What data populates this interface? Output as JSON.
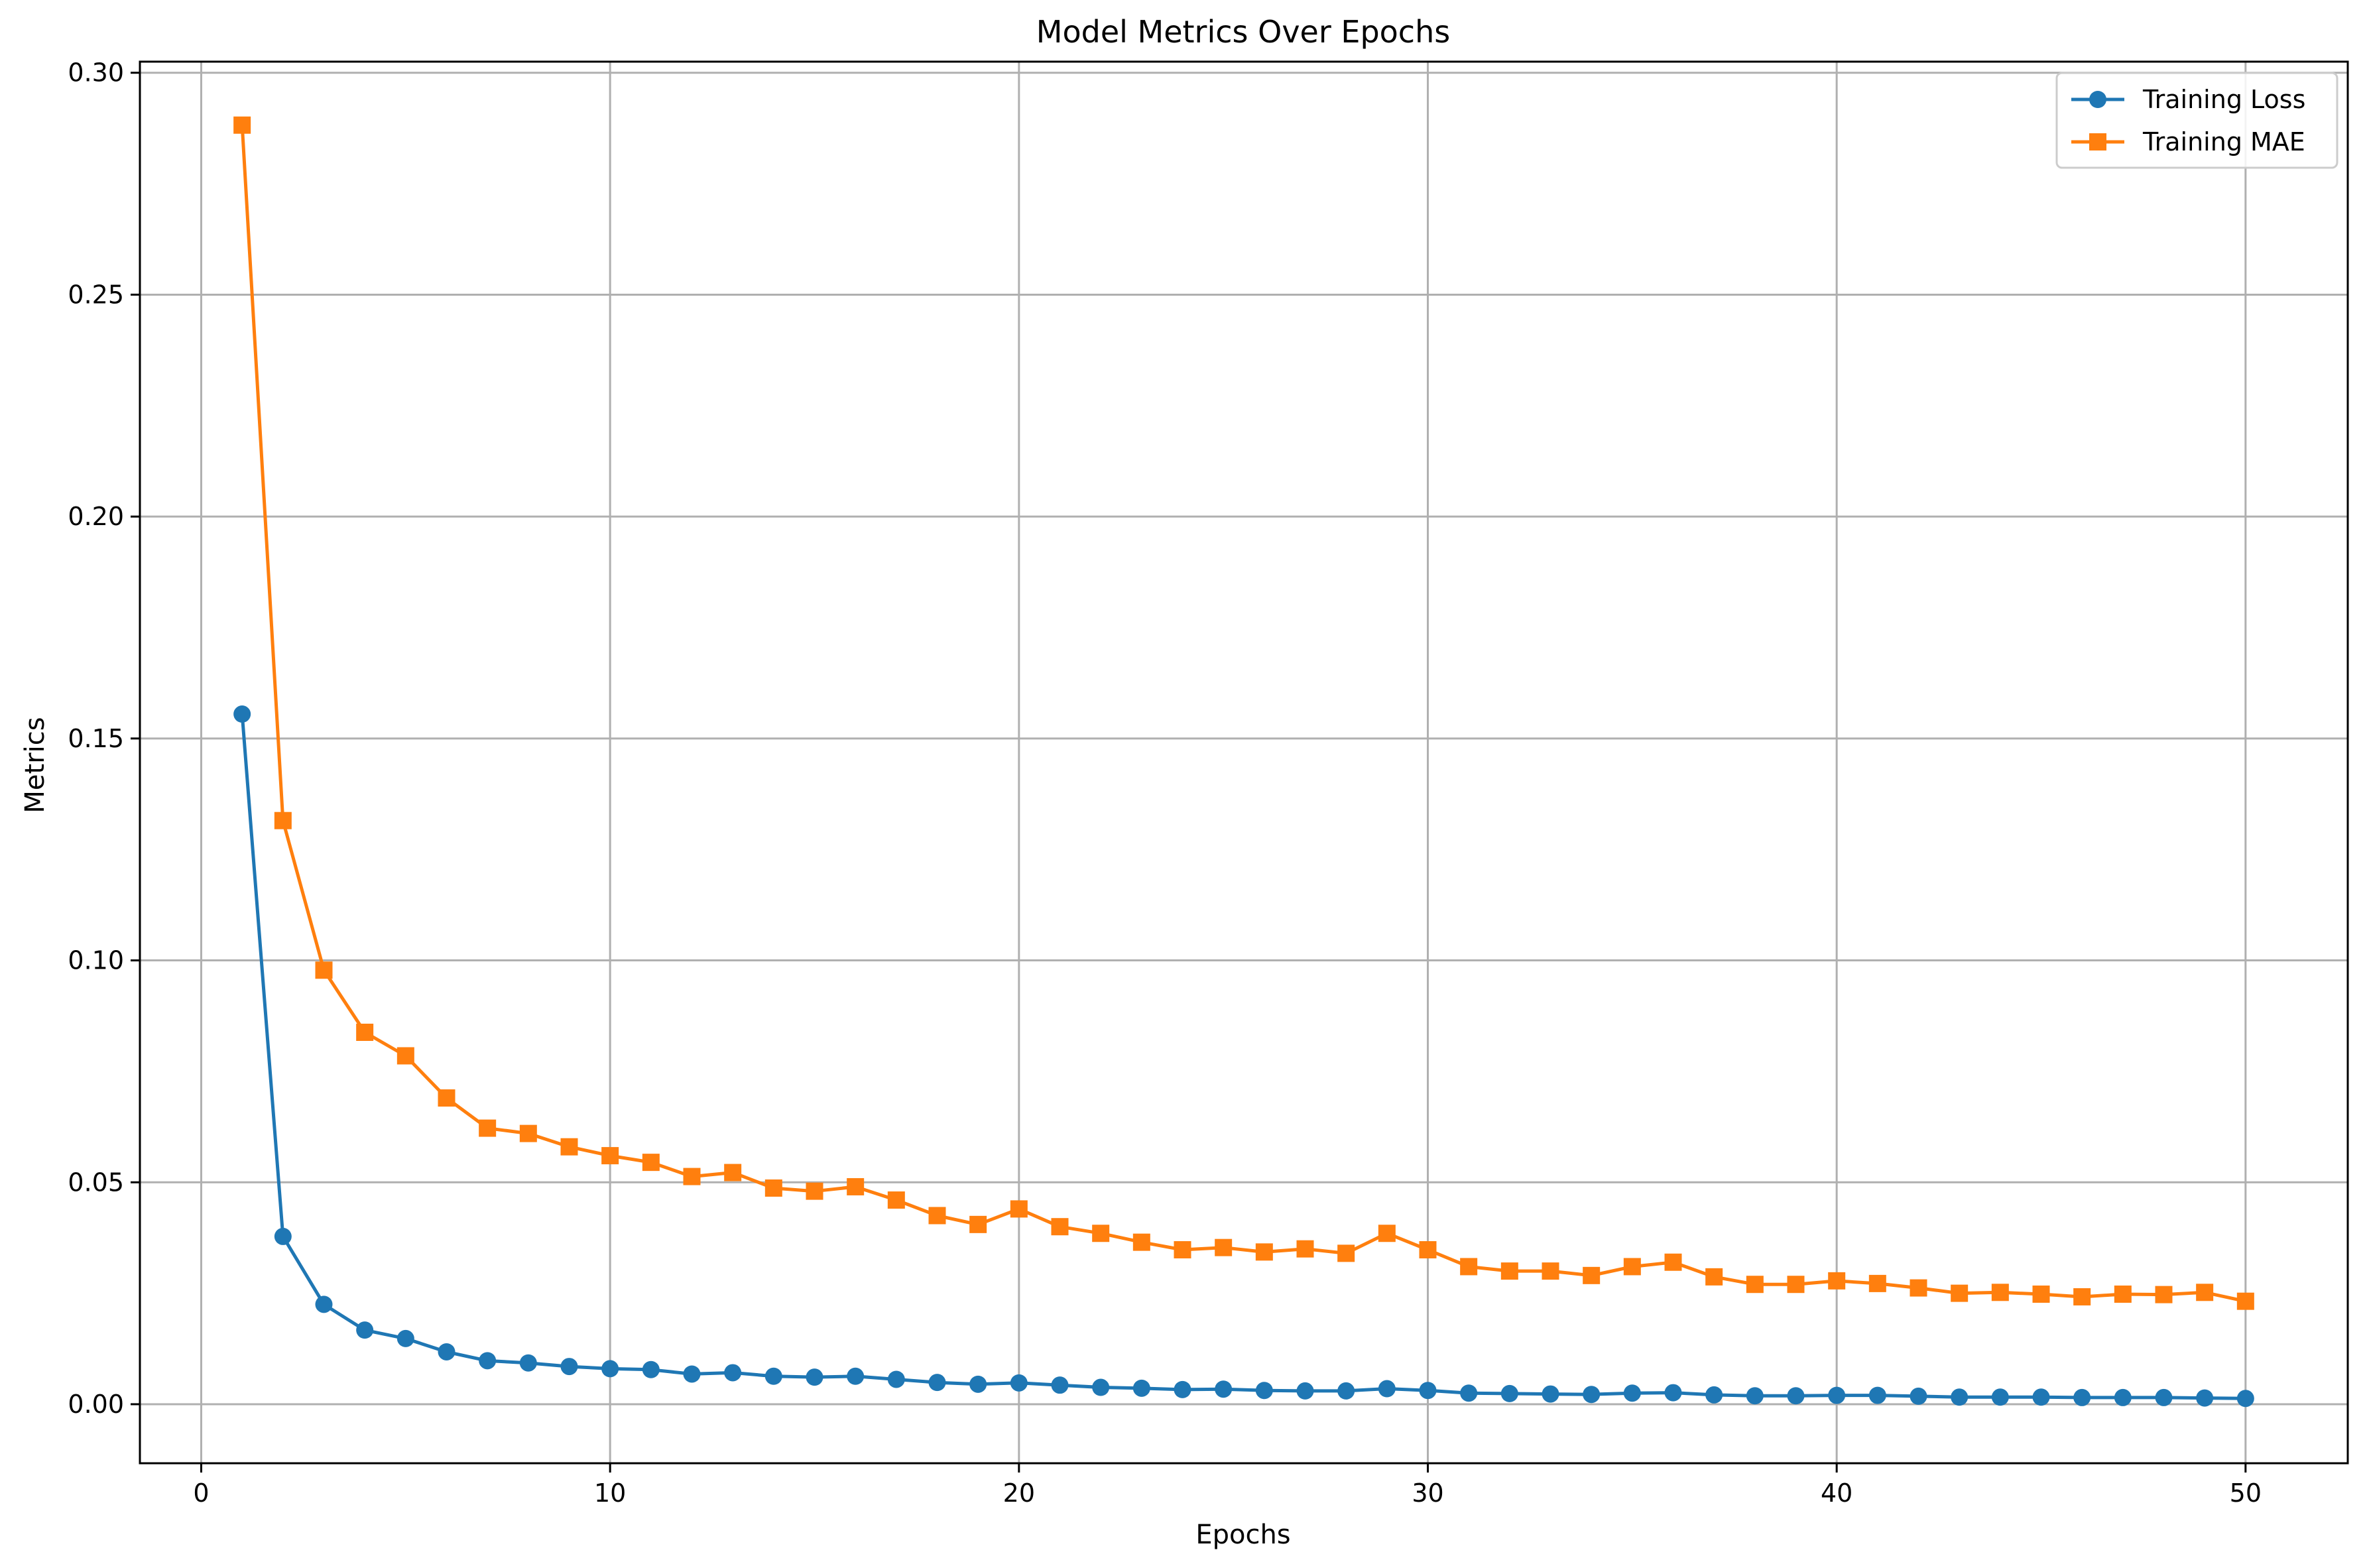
{
  "chart_data": {
    "type": "line",
    "title": "Model Metrics Over Epochs",
    "xlabel": "Epochs",
    "ylabel": "Metrics",
    "xlim": [
      -1.5,
      52.5
    ],
    "ylim": [
      -0.0133,
      0.3025
    ],
    "xticks": [
      0,
      10,
      20,
      30,
      40,
      50
    ],
    "xtick_labels": [
      "0",
      "10",
      "20",
      "30",
      "40",
      "50"
    ],
    "yticks": [
      0.0,
      0.05,
      0.1,
      0.15,
      0.2,
      0.25,
      0.3
    ],
    "ytick_labels": [
      "0.00",
      "0.05",
      "0.10",
      "0.15",
      "0.20",
      "0.25",
      "0.30"
    ],
    "grid": true,
    "legend_position": "top-right",
    "x": [
      1,
      2,
      3,
      4,
      5,
      6,
      7,
      8,
      9,
      10,
      11,
      12,
      13,
      14,
      15,
      16,
      17,
      18,
      19,
      20,
      21,
      22,
      23,
      24,
      25,
      26,
      27,
      28,
      29,
      30,
      31,
      32,
      33,
      34,
      35,
      36,
      37,
      38,
      39,
      40,
      41,
      42,
      43,
      44,
      45,
      46,
      47,
      48,
      49,
      50
    ],
    "series": [
      {
        "name": "Training Loss",
        "color": "#1f77b4",
        "marker": "circle",
        "values": [
          0.1555,
          0.0378,
          0.0225,
          0.0167,
          0.0148,
          0.0118,
          0.0098,
          0.0093,
          0.0085,
          0.008,
          0.0078,
          0.0068,
          0.0071,
          0.0063,
          0.0061,
          0.0063,
          0.0056,
          0.0049,
          0.0045,
          0.0048,
          0.0043,
          0.0038,
          0.0036,
          0.0033,
          0.0034,
          0.0031,
          0.003,
          0.003,
          0.0035,
          0.0031,
          0.0025,
          0.0024,
          0.0023,
          0.0022,
          0.0025,
          0.0026,
          0.0021,
          0.0019,
          0.0019,
          0.002,
          0.002,
          0.0018,
          0.0016,
          0.0016,
          0.0016,
          0.0015,
          0.0015,
          0.0015,
          0.0014,
          0.0013
        ]
      },
      {
        "name": "Training MAE",
        "color": "#ff7f0e",
        "marker": "square",
        "values": [
          0.2882,
          0.1315,
          0.0978,
          0.0838,
          0.0785,
          0.069,
          0.0622,
          0.061,
          0.058,
          0.056,
          0.0545,
          0.0513,
          0.0522,
          0.0487,
          0.048,
          0.049,
          0.046,
          0.0425,
          0.0405,
          0.044,
          0.04,
          0.0385,
          0.0365,
          0.0348,
          0.0353,
          0.0343,
          0.035,
          0.034,
          0.0385,
          0.0348,
          0.031,
          0.03,
          0.03,
          0.029,
          0.031,
          0.032,
          0.0287,
          0.027,
          0.027,
          0.0278,
          0.0272,
          0.0262,
          0.025,
          0.0252,
          0.0248,
          0.0242,
          0.0248,
          0.0247,
          0.0252,
          0.0232
        ]
      }
    ]
  }
}
